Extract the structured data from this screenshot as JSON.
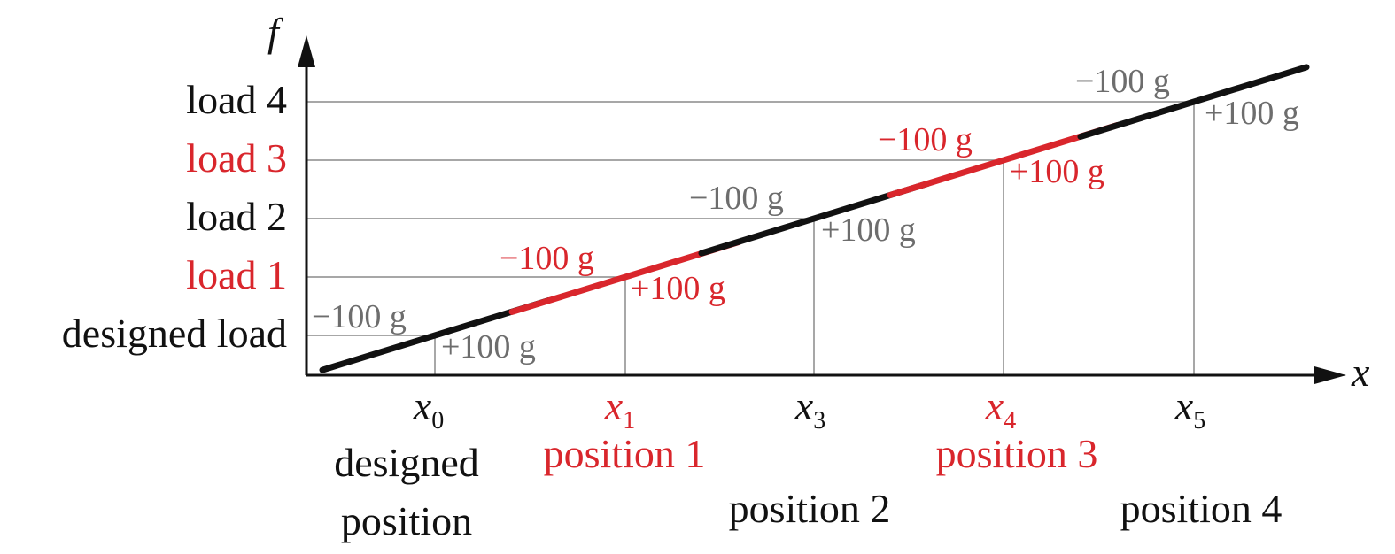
{
  "axes": {
    "x_label": "x",
    "y_label": "f"
  },
  "colors": {
    "black": "#111111",
    "red": "#d9262c",
    "grey_text": "#6d6d6d",
    "grid": "#8a8a8a"
  },
  "loads": [
    {
      "label": "designed load",
      "color": "black"
    },
    {
      "label": "load 1",
      "color": "red"
    },
    {
      "label": "load 2",
      "color": "black"
    },
    {
      "label": "load 3",
      "color": "red"
    },
    {
      "label": "load 4",
      "color": "black"
    }
  ],
  "positions": [
    {
      "symbol": "x",
      "subscript": "0",
      "name_lines": [
        "designed",
        "position"
      ],
      "color": "black"
    },
    {
      "symbol": "x",
      "subscript": "1",
      "name_lines": [
        "position 1"
      ],
      "color": "red"
    },
    {
      "symbol": "x",
      "subscript": "3",
      "name_lines": [
        "position 2"
      ],
      "color": "black"
    },
    {
      "symbol": "x",
      "subscript": "4",
      "name_lines": [
        "position 3"
      ],
      "color": "red"
    },
    {
      "symbol": "x",
      "subscript": "5",
      "name_lines": [
        "position 4"
      ],
      "color": "black"
    }
  ],
  "segments": [
    {
      "minus_label": "−100 g",
      "plus_label": "+100 g",
      "color": "black"
    },
    {
      "minus_label": "−100 g",
      "plus_label": "+100 g",
      "color": "red"
    },
    {
      "minus_label": "−100 g",
      "plus_label": "+100 g",
      "color": "black"
    },
    {
      "minus_label": "−100 g",
      "plus_label": "+100 g",
      "color": "red"
    },
    {
      "minus_label": "−100 g",
      "plus_label": "+100 g",
      "color": "black"
    }
  ]
}
